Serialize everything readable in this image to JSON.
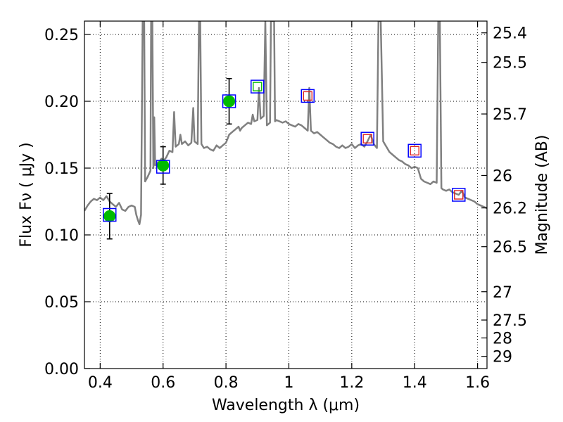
{
  "chart_data": {
    "type": "scatter",
    "xlabel": "Wavelength  λ (μm)",
    "ylabel": "Flux  Fν  ( μJy )",
    "ylabel_right": "Magnitude (AB)",
    "xlim": [
      0.35,
      1.63
    ],
    "ylim": [
      0.0,
      0.26
    ],
    "grid": true,
    "x_ticks": [
      0.4,
      0.6,
      0.8,
      1.0,
      1.2,
      1.4,
      1.6
    ],
    "x_tick_labels": [
      "0.4",
      "0.6",
      "0.8",
      "1",
      "1.2",
      "1.4",
      "1.6"
    ],
    "y_ticks": [
      0.0,
      0.05,
      0.1,
      0.15,
      0.2,
      0.25
    ],
    "y_tick_labels": [
      "0.00",
      "0.05",
      "0.10",
      "0.15",
      "0.20",
      "0.25"
    ],
    "mag_ticks": [
      {
        "label": "25.4",
        "flux": 0.2512
      },
      {
        "label": "25.5",
        "flux": 0.2291
      },
      {
        "label": "25.7",
        "flux": 0.1905
      },
      {
        "label": "26",
        "flux": 0.1445
      },
      {
        "label": "26.2",
        "flux": 0.1202
      },
      {
        "label": "26.5",
        "flux": 0.0912
      },
      {
        "label": "27",
        "flux": 0.0575
      },
      {
        "label": "27.5",
        "flux": 0.0363
      },
      {
        "label": "28",
        "flux": 0.0229
      },
      {
        "label": "29",
        "flux": 0.0091
      }
    ],
    "series": [
      {
        "name": "model-spectrum",
        "kind": "line",
        "color": "#808080",
        "points": [
          [
            0.35,
            0.118
          ],
          [
            0.36,
            0.122
          ],
          [
            0.37,
            0.125
          ],
          [
            0.38,
            0.127
          ],
          [
            0.39,
            0.126
          ],
          [
            0.4,
            0.128
          ],
          [
            0.41,
            0.126
          ],
          [
            0.42,
            0.129
          ],
          [
            0.43,
            0.125
          ],
          [
            0.44,
            0.123
          ],
          [
            0.45,
            0.121
          ],
          [
            0.46,
            0.124
          ],
          [
            0.47,
            0.119
          ],
          [
            0.48,
            0.118
          ],
          [
            0.49,
            0.121
          ],
          [
            0.5,
            0.122
          ],
          [
            0.51,
            0.121
          ],
          [
            0.515,
            0.115
          ],
          [
            0.52,
            0.111
          ],
          [
            0.525,
            0.108
          ],
          [
            0.53,
            0.115
          ],
          [
            0.535,
            0.26
          ],
          [
            0.54,
            0.26
          ],
          [
            0.543,
            0.14
          ],
          [
            0.55,
            0.143
          ],
          [
            0.56,
            0.148
          ],
          [
            0.562,
            0.26
          ],
          [
            0.566,
            0.26
          ],
          [
            0.569,
            0.15
          ],
          [
            0.572,
            0.188
          ],
          [
            0.575,
            0.152
          ],
          [
            0.58,
            0.153
          ],
          [
            0.588,
            0.155
          ],
          [
            0.595,
            0.157
          ],
          [
            0.6,
            0.155
          ],
          [
            0.61,
            0.158
          ],
          [
            0.62,
            0.163
          ],
          [
            0.63,
            0.162
          ],
          [
            0.635,
            0.192
          ],
          [
            0.64,
            0.166
          ],
          [
            0.65,
            0.168
          ],
          [
            0.655,
            0.175
          ],
          [
            0.66,
            0.168
          ],
          [
            0.67,
            0.17
          ],
          [
            0.68,
            0.167
          ],
          [
            0.69,
            0.169
          ],
          [
            0.696,
            0.195
          ],
          [
            0.7,
            0.17
          ],
          [
            0.71,
            0.168
          ],
          [
            0.714,
            0.26
          ],
          [
            0.718,
            0.26
          ],
          [
            0.722,
            0.168
          ],
          [
            0.73,
            0.165
          ],
          [
            0.74,
            0.166
          ],
          [
            0.75,
            0.164
          ],
          [
            0.76,
            0.163
          ],
          [
            0.77,
            0.167
          ],
          [
            0.78,
            0.165
          ],
          [
            0.79,
            0.167
          ],
          [
            0.8,
            0.169
          ],
          [
            0.81,
            0.175
          ],
          [
            0.82,
            0.177
          ],
          [
            0.83,
            0.179
          ],
          [
            0.84,
            0.181
          ],
          [
            0.845,
            0.178
          ],
          [
            0.85,
            0.18
          ],
          [
            0.86,
            0.182
          ],
          [
            0.87,
            0.184
          ],
          [
            0.88,
            0.183
          ],
          [
            0.885,
            0.19
          ],
          [
            0.89,
            0.185
          ],
          [
            0.9,
            0.186
          ],
          [
            0.905,
            0.21
          ],
          [
            0.91,
            0.187
          ],
          [
            0.92,
            0.189
          ],
          [
            0.925,
            0.26
          ],
          [
            0.93,
            0.182
          ],
          [
            0.94,
            0.184
          ],
          [
            0.943,
            0.26
          ],
          [
            0.946,
            0.26
          ],
          [
            0.95,
            0.26
          ],
          [
            0.953,
            0.26
          ],
          [
            0.956,
            0.185
          ],
          [
            0.96,
            0.186
          ],
          [
            0.97,
            0.185
          ],
          [
            0.98,
            0.184
          ],
          [
            0.99,
            0.185
          ],
          [
            1.0,
            0.183
          ],
          [
            1.01,
            0.182
          ],
          [
            1.02,
            0.181
          ],
          [
            1.03,
            0.183
          ],
          [
            1.04,
            0.182
          ],
          [
            1.05,
            0.18
          ],
          [
            1.06,
            0.178
          ],
          [
            1.065,
            0.21
          ],
          [
            1.07,
            0.178
          ],
          [
            1.08,
            0.176
          ],
          [
            1.09,
            0.177
          ],
          [
            1.1,
            0.175
          ],
          [
            1.11,
            0.173
          ],
          [
            1.12,
            0.171
          ],
          [
            1.13,
            0.169
          ],
          [
            1.14,
            0.168
          ],
          [
            1.15,
            0.166
          ],
          [
            1.16,
            0.165
          ],
          [
            1.17,
            0.167
          ],
          [
            1.18,
            0.165
          ],
          [
            1.19,
            0.166
          ],
          [
            1.2,
            0.168
          ],
          [
            1.21,
            0.165
          ],
          [
            1.22,
            0.167
          ],
          [
            1.23,
            0.168
          ],
          [
            1.24,
            0.166
          ],
          [
            1.25,
            0.17
          ],
          [
            1.26,
            0.175
          ],
          [
            1.27,
            0.168
          ],
          [
            1.28,
            0.165
          ],
          [
            1.285,
            0.26
          ],
          [
            1.292,
            0.26
          ],
          [
            1.3,
            0.17
          ],
          [
            1.31,
            0.166
          ],
          [
            1.32,
            0.162
          ],
          [
            1.33,
            0.16
          ],
          [
            1.34,
            0.158
          ],
          [
            1.35,
            0.156
          ],
          [
            1.36,
            0.155
          ],
          [
            1.37,
            0.153
          ],
          [
            1.38,
            0.152
          ],
          [
            1.39,
            0.15
          ],
          [
            1.4,
            0.151
          ],
          [
            1.41,
            0.15
          ],
          [
            1.42,
            0.142
          ],
          [
            1.43,
            0.14
          ],
          [
            1.44,
            0.139
          ],
          [
            1.45,
            0.138
          ],
          [
            1.46,
            0.14
          ],
          [
            1.47,
            0.139
          ],
          [
            1.475,
            0.26
          ],
          [
            1.48,
            0.26
          ],
          [
            1.485,
            0.135
          ],
          [
            1.49,
            0.134
          ],
          [
            1.5,
            0.133
          ],
          [
            1.51,
            0.134
          ],
          [
            1.52,
            0.132
          ],
          [
            1.53,
            0.131
          ],
          [
            1.54,
            0.13
          ],
          [
            1.55,
            0.133
          ],
          [
            1.56,
            0.128
          ],
          [
            1.57,
            0.127
          ],
          [
            1.58,
            0.126
          ],
          [
            1.59,
            0.125
          ],
          [
            1.6,
            0.123
          ],
          [
            1.61,
            0.122
          ],
          [
            1.62,
            0.121
          ],
          [
            1.63,
            0.12
          ]
        ]
      },
      {
        "name": "observed-photometry",
        "kind": "points",
        "marker": "filled-circle",
        "color": "#00bb00",
        "points": [
          {
            "x": 0.43,
            "y": 0.114,
            "yerr": 0.017
          },
          {
            "x": 0.6,
            "y": 0.152,
            "yerr": 0.014
          },
          {
            "x": 0.81,
            "y": 0.2,
            "yerr": 0.017
          }
        ]
      },
      {
        "name": "model-bandpass-flux",
        "kind": "points",
        "marker": "open-square",
        "color": "#0000ff",
        "points": [
          {
            "x": 0.43,
            "y": 0.115
          },
          {
            "x": 0.6,
            "y": 0.151
          },
          {
            "x": 0.81,
            "y": 0.2
          },
          {
            "x": 0.9,
            "y": 0.211
          },
          {
            "x": 1.06,
            "y": 0.204
          },
          {
            "x": 1.25,
            "y": 0.172
          },
          {
            "x": 1.4,
            "y": 0.163
          },
          {
            "x": 1.54,
            "y": 0.13
          }
        ]
      },
      {
        "name": "green-open-inner",
        "kind": "points",
        "marker": "open-square-small",
        "color": "#00bb00",
        "points": [
          {
            "x": 0.9,
            "y": 0.211
          }
        ]
      },
      {
        "name": "red-open-inner",
        "kind": "points",
        "marker": "open-square-small",
        "color": "#dd2222",
        "points": [
          {
            "x": 1.06,
            "y": 0.204
          },
          {
            "x": 1.25,
            "y": 0.172
          },
          {
            "x": 1.4,
            "y": 0.163
          },
          {
            "x": 1.54,
            "y": 0.13
          }
        ]
      }
    ]
  }
}
